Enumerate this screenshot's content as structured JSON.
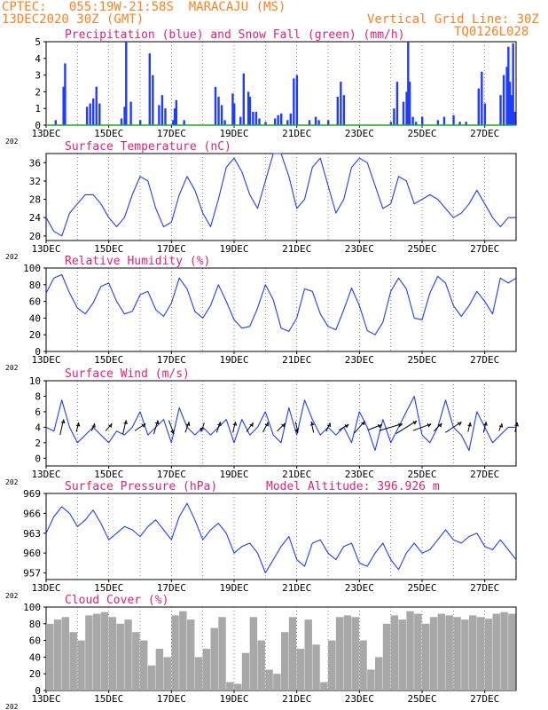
{
  "header": {
    "line1": "CPTEC:   055:19W-21:58S  MARACAJU (MS)",
    "line2": "13DEC2020 30Z (GMT)",
    "grid_note": "Vertical Grid Line: 30Z",
    "run_code": "TQ0126L028"
  },
  "colors": {
    "header": "#ff7f1e",
    "title": "#e0207a",
    "line": "#1f3cff",
    "snow": "#17b117",
    "cloud": "#a8a8a8",
    "grid": "#555555"
  },
  "x_axis": {
    "tick_labels": [
      "13DEC",
      "15DEC",
      "17DEC",
      "19DEC",
      "21DEC",
      "23DEC",
      "25DEC",
      "27DEC"
    ],
    "tick_days": [
      13,
      15,
      17,
      19,
      21,
      23,
      25,
      27
    ],
    "range_days": [
      13,
      28
    ],
    "clipped_year_label": "202"
  },
  "chart_data": [
    {
      "type": "bar",
      "title": "Precipitation (blue) and Snow Fall (green) (mm/h)",
      "ylim": [
        0,
        5
      ],
      "yticks": [
        0,
        1,
        2,
        3,
        4,
        5
      ],
      "series": [
        {
          "name": "Precipitation",
          "kind": "bar",
          "x": [
            13.3,
            13.55,
            13.6,
            14.3,
            14.4,
            14.5,
            14.6,
            14.7,
            15.4,
            15.5,
            15.55,
            15.7,
            16.0,
            16.3,
            16.4,
            16.6,
            16.7,
            16.8,
            17.05,
            17.1,
            17.15,
            17.4,
            18.4,
            18.5,
            18.6,
            18.7,
            18.95,
            19.0,
            19.2,
            19.3,
            19.45,
            19.5,
            19.6,
            19.7,
            19.8,
            20.0,
            20.3,
            20.4,
            20.5,
            20.7,
            20.8,
            20.9,
            21.0,
            21.4,
            21.6,
            21.7,
            22.0,
            22.3,
            22.4,
            22.5,
            24.0,
            24.1,
            24.2,
            24.4,
            24.5,
            24.55,
            24.6,
            24.7,
            24.8,
            25.0,
            25.5,
            25.7,
            26.0,
            26.2,
            26.4,
            26.8,
            26.9,
            27.0,
            27.5,
            27.6,
            27.7,
            27.75,
            27.8,
            27.85,
            27.9,
            27.95
          ],
          "values": [
            0.3,
            2.3,
            3.7,
            1.1,
            1.3,
            1.6,
            2.3,
            1.3,
            0.4,
            1.1,
            5.0,
            1.4,
            0.3,
            4.3,
            3.0,
            1.2,
            1.8,
            1.0,
            0.3,
            1.0,
            1.5,
            0.3,
            2.3,
            1.7,
            1.2,
            0.3,
            1.9,
            1.3,
            0.5,
            3.1,
            2.0,
            1.7,
            0.8,
            0.8,
            0.4,
            0.2,
            0.4,
            0.6,
            0.7,
            0.3,
            0.7,
            2.8,
            3.0,
            0.3,
            0.5,
            0.3,
            0.3,
            1.7,
            2.6,
            1.8,
            0.2,
            1.0,
            2.6,
            1.4,
            2.0,
            5.0,
            2.6,
            0.5,
            0.2,
            0.5,
            0.3,
            0.5,
            0.6,
            0.2,
            0.2,
            2.2,
            3.2,
            1.3,
            1.8,
            3.0,
            3.5,
            4.7,
            2.6,
            1.8,
            4.9,
            0.8
          ]
        },
        {
          "name": "Snow Fall",
          "kind": "line",
          "x": [
            13,
            28
          ],
          "values": [
            0,
            0
          ]
        }
      ]
    },
    {
      "type": "line",
      "title": "Surface Temperature (nC)",
      "ylim": [
        19,
        38
      ],
      "yticks": [
        20,
        24,
        28,
        32,
        36
      ],
      "series": [
        {
          "name": "",
          "x": [
            13,
            13.25,
            13.5,
            13.75,
            14,
            14.25,
            14.5,
            14.75,
            15,
            15.25,
            15.5,
            15.75,
            16,
            16.25,
            16.5,
            16.75,
            17,
            17.25,
            17.5,
            17.75,
            18,
            18.25,
            18.5,
            18.75,
            19,
            19.25,
            19.5,
            19.75,
            20,
            20.25,
            20.5,
            20.75,
            21,
            21.25,
            21.5,
            21.75,
            22,
            22.25,
            22.5,
            22.75,
            23,
            23.25,
            23.5,
            23.75,
            24,
            24.25,
            24.5,
            24.75,
            25,
            25.25,
            25.5,
            25.75,
            26,
            26.25,
            26.5,
            26.75,
            27,
            27.25,
            27.5,
            27.75,
            28
          ],
          "values": [
            24,
            21,
            20,
            25,
            27,
            29,
            29,
            27,
            24,
            22,
            24,
            29,
            33,
            32,
            26,
            22,
            23,
            29,
            33,
            30,
            25,
            22,
            28,
            35,
            37,
            34,
            29,
            26,
            32,
            38,
            38,
            33,
            26,
            28,
            35,
            37,
            31,
            25,
            28,
            35,
            37,
            36,
            31,
            26,
            27,
            33,
            32,
            27,
            28,
            29,
            28,
            26,
            24,
            25,
            27,
            30,
            27,
            24,
            22,
            24,
            24
          ]
        }
      ]
    },
    {
      "type": "line",
      "title": "Relative Humidity (%)",
      "ylim": [
        0,
        100
      ],
      "yticks": [
        0,
        20,
        40,
        60,
        80,
        100
      ],
      "series": [
        {
          "name": "",
          "x": [
            13,
            13.25,
            13.5,
            13.75,
            14,
            14.25,
            14.5,
            14.75,
            15,
            15.25,
            15.5,
            15.75,
            16,
            16.25,
            16.5,
            16.75,
            17,
            17.25,
            17.5,
            17.75,
            18,
            18.25,
            18.5,
            18.75,
            19,
            19.25,
            19.5,
            19.75,
            20,
            20.25,
            20.5,
            20.75,
            21,
            21.25,
            21.5,
            21.75,
            22,
            22.25,
            22.5,
            22.75,
            23,
            23.25,
            23.5,
            23.75,
            24,
            24.25,
            24.5,
            24.75,
            25,
            25.25,
            25.5,
            25.75,
            26,
            26.25,
            26.5,
            26.75,
            27,
            27.25,
            27.5,
            27.75,
            28
          ],
          "values": [
            70,
            88,
            92,
            70,
            52,
            45,
            58,
            78,
            82,
            60,
            45,
            48,
            68,
            72,
            50,
            42,
            58,
            88,
            75,
            48,
            40,
            55,
            80,
            60,
            38,
            28,
            30,
            52,
            80,
            62,
            28,
            24,
            40,
            75,
            72,
            45,
            30,
            26,
            50,
            76,
            55,
            25,
            20,
            35,
            72,
            88,
            75,
            40,
            38,
            70,
            90,
            82,
            55,
            42,
            55,
            72,
            60,
            45,
            88,
            82,
            88
          ]
        }
      ]
    },
    {
      "type": "line",
      "title": "Surface Wind (m/s)",
      "ylim": [
        -1,
        10
      ],
      "yticks": [
        0,
        2,
        4,
        6,
        8,
        10
      ],
      "series": [
        {
          "name": "",
          "x": [
            13,
            13.25,
            13.5,
            13.75,
            14,
            14.25,
            14.5,
            14.75,
            15,
            15.25,
            15.5,
            15.75,
            16,
            16.25,
            16.5,
            16.75,
            17,
            17.25,
            17.5,
            17.75,
            18,
            18.25,
            18.5,
            18.75,
            19,
            19.25,
            19.5,
            19.75,
            20,
            20.25,
            20.5,
            20.75,
            21,
            21.25,
            21.5,
            21.75,
            22,
            22.25,
            22.5,
            22.75,
            23,
            23.25,
            23.5,
            23.75,
            24,
            24.25,
            24.5,
            24.75,
            25,
            25.25,
            25.5,
            25.75,
            26,
            26.25,
            26.5,
            26.75,
            27,
            27.25,
            27.5,
            27.75,
            28
          ],
          "values": [
            4,
            3.5,
            7.5,
            4,
            2,
            3,
            4,
            3,
            2,
            3.5,
            3,
            4,
            6,
            3,
            4,
            5,
            2,
            6.5,
            4,
            3,
            4,
            3,
            4,
            5,
            2,
            5,
            3,
            4,
            6,
            3,
            2,
            6.5,
            3,
            7.5,
            5,
            3,
            4,
            3,
            4,
            2,
            6,
            4,
            1,
            5,
            2,
            4,
            6,
            8,
            3,
            2,
            4,
            7.5,
            4,
            3,
            1,
            6,
            4,
            2,
            3,
            4,
            4
          ]
        }
      ],
      "wind_arrows": {
        "x": [
          13.5,
          14.0,
          14.5,
          15.0,
          15.5,
          16.0,
          16.5,
          17.0,
          17.5,
          18.0,
          18.5,
          19.0,
          19.5,
          20.0,
          20.5,
          21.0,
          21.5,
          22.0,
          22.5,
          23.0,
          23.5,
          24.0,
          24.5,
          25.0,
          25.5,
          26.0,
          26.5,
          27.0,
          27.5,
          28.0
        ],
        "u": [
          0.2,
          0.2,
          0.3,
          0.5,
          0.2,
          0.6,
          0.2,
          0.3,
          0.3,
          -0.3,
          0.3,
          0.2,
          0.5,
          0.4,
          0.6,
          0.2,
          -0.2,
          0.4,
          0.8,
          0.6,
          1.0,
          1.0,
          0.8,
          0.8,
          0.6,
          0.6,
          0.2,
          0.2,
          0.3,
          0.2
        ],
        "v": [
          0.9,
          0.9,
          0.8,
          0.6,
          0.9,
          0.4,
          0.7,
          -0.8,
          0.9,
          -0.9,
          0.9,
          0.9,
          0.7,
          0.8,
          0.6,
          -0.9,
          0.9,
          0.9,
          0.5,
          0.7,
          0.4,
          0.3,
          0.5,
          0.3,
          0.6,
          0.4,
          0.9,
          0.9,
          0.8,
          0.9
        ],
        "len": [
          1.0,
          0.6,
          0.5,
          0.6,
          0.9,
          0.8,
          0.9,
          0.9,
          0.7,
          0.6,
          0.7,
          0.7,
          0.7,
          0.7,
          0.7,
          0.7,
          0.7,
          0.6,
          0.7,
          1.0,
          0.9,
          1.5,
          1.5,
          1.2,
          0.7,
          1.2,
          0.6,
          0.7,
          0.5,
          0.6
        ]
      }
    },
    {
      "type": "line",
      "title": "Surface Pressure (hPa)",
      "annotation": "Model Altitude: 396.926  m",
      "ylim": [
        956,
        969
      ],
      "yticks": [
        957,
        960,
        963,
        966,
        969
      ],
      "series": [
        {
          "name": "",
          "x": [
            13,
            13.25,
            13.5,
            13.75,
            14,
            14.25,
            14.5,
            14.75,
            15,
            15.25,
            15.5,
            15.75,
            16,
            16.25,
            16.5,
            16.75,
            17,
            17.25,
            17.5,
            17.75,
            18,
            18.25,
            18.5,
            18.75,
            19,
            19.25,
            19.5,
            19.75,
            20,
            20.25,
            20.5,
            20.75,
            21,
            21.25,
            21.5,
            21.75,
            22,
            22.25,
            22.5,
            22.75,
            23,
            23.25,
            23.5,
            23.75,
            24,
            24.25,
            24.5,
            24.75,
            25,
            25.25,
            25.5,
            25.75,
            26,
            26.25,
            26.5,
            26.75,
            27,
            27.25,
            27.5,
            27.75,
            28
          ],
          "values": [
            963,
            965.5,
            967,
            966,
            964,
            965,
            966.5,
            964.5,
            962,
            963,
            964,
            963.5,
            962.5,
            964,
            965,
            963.5,
            962,
            965.5,
            967.5,
            965,
            962,
            963.5,
            964.5,
            963,
            960,
            961,
            961.5,
            960,
            957,
            959,
            961,
            962.5,
            959,
            958,
            961.5,
            962,
            960,
            959,
            961,
            961.5,
            958.5,
            958,
            960,
            961.5,
            959,
            957.5,
            960,
            961.5,
            960,
            960.5,
            962,
            963.5,
            962,
            961.5,
            962.5,
            963,
            961,
            960.5,
            962,
            960.5,
            959
          ]
        }
      ]
    },
    {
      "type": "bar",
      "title": "Cloud Cover (%)",
      "ylim": [
        0,
        100
      ],
      "yticks": [
        0,
        20,
        40,
        60,
        80,
        100
      ],
      "series": [
        {
          "name": "",
          "x": [
            13.0,
            13.25,
            13.5,
            13.75,
            14.0,
            14.25,
            14.5,
            14.75,
            15.0,
            15.25,
            15.5,
            15.75,
            16.0,
            16.25,
            16.5,
            16.75,
            17.0,
            17.25,
            17.5,
            17.75,
            18.0,
            18.25,
            18.5,
            18.75,
            19.0,
            19.25,
            19.5,
            19.75,
            20.0,
            20.25,
            20.5,
            20.75,
            21.0,
            21.25,
            21.5,
            21.75,
            22.0,
            22.25,
            22.5,
            22.75,
            23.0,
            23.25,
            23.5,
            23.75,
            24.0,
            24.25,
            24.5,
            24.75,
            25.0,
            25.25,
            25.5,
            25.75,
            26.0,
            26.25,
            26.5,
            26.75,
            27.0,
            27.25,
            27.5,
            27.75
          ],
          "values": [
            80,
            85,
            88,
            70,
            60,
            90,
            92,
            94,
            88,
            80,
            85,
            70,
            60,
            30,
            50,
            40,
            90,
            95,
            85,
            40,
            50,
            75,
            88,
            10,
            8,
            45,
            88,
            60,
            25,
            20,
            70,
            88,
            50,
            85,
            55,
            10,
            60,
            88,
            90,
            88,
            60,
            25,
            40,
            80,
            90,
            85,
            95,
            92,
            80,
            88,
            92,
            90,
            88,
            85,
            90,
            88,
            86,
            92,
            94,
            92
          ]
        }
      ]
    }
  ]
}
